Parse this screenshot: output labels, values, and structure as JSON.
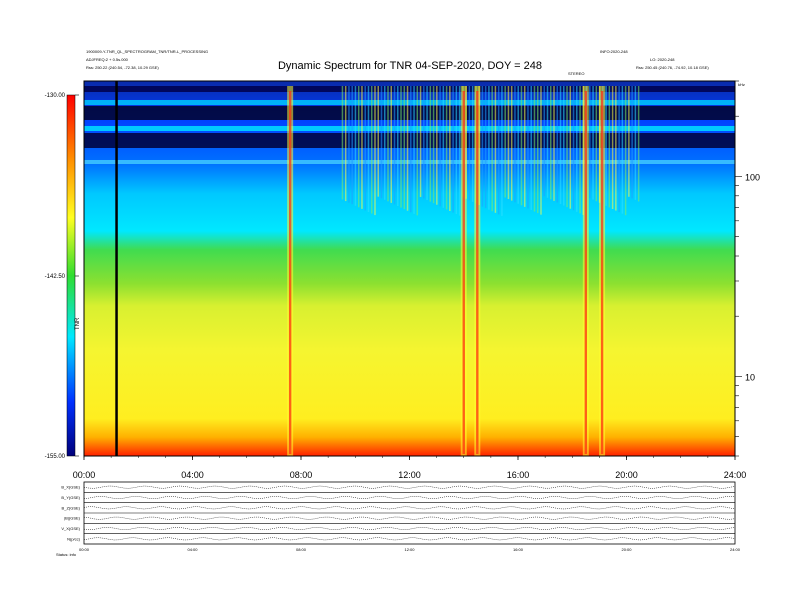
{
  "chart_data": {
    "type": "heatmap",
    "title": "Dynamic Spectrum for TNR 04-SEP-2020, DOY = 248",
    "header_left": [
      "1900009-Y-TNR_QL_SPECTROGRAM_TNR/TNR-L_PROCESSING",
      "ADJFREQ:2 + 0.5s.000",
      "Rss: 250.22 (240.54, -72.38, 10.29 GSE)"
    ],
    "header_right": [
      "INFO:2020-248",
      "LO: 2020-248",
      "Rss: 250.45 (240.76, -74.92, 10.18 GSE)"
    ],
    "header_center_small": "STEREO",
    "xlabel": "",
    "ylabel": "",
    "x_ticks": [
      "00:00",
      "04:00",
      "08:00",
      "12:00",
      "16:00",
      "20:00",
      "24:00"
    ],
    "x_range_hours": [
      0,
      24
    ],
    "y_scale": "log",
    "y_range": [
      4,
      300
    ],
    "y_ticks": [
      "10",
      "100"
    ],
    "y_unit_label": "kHz",
    "colorbar": {
      "ticks": [
        "-130.00",
        "-142.50",
        "-155.00"
      ],
      "range": [
        -155,
        -130
      ],
      "label": "TNR",
      "colors": [
        "#0000a0",
        "#0050ff",
        "#00e0ff",
        "#40e040",
        "#ffff20",
        "#ff9000",
        "#ff1010"
      ]
    },
    "marker_line_hour": 1.2,
    "bursts": [
      {
        "hour": 7.6,
        "intensity": "high"
      },
      {
        "hour": 14.0,
        "intensity": "high"
      },
      {
        "hour": 14.5,
        "intensity": "high"
      },
      {
        "hour": 18.5,
        "intensity": "high"
      },
      {
        "hour": 19.1,
        "intensity": "high"
      }
    ],
    "lower_panels": {
      "rows": [
        "B_X(GSE)",
        "B_Y(GSE)",
        "B_Z(GSE)",
        "|B|(GSE)",
        "V_X(GSE)",
        "N(p/cc)"
      ],
      "footer_left": "Status: info",
      "x_ticks": [
        "00:00",
        "04:00",
        "08:00",
        "12:00",
        "16:00",
        "20:00",
        "24:00"
      ]
    }
  }
}
